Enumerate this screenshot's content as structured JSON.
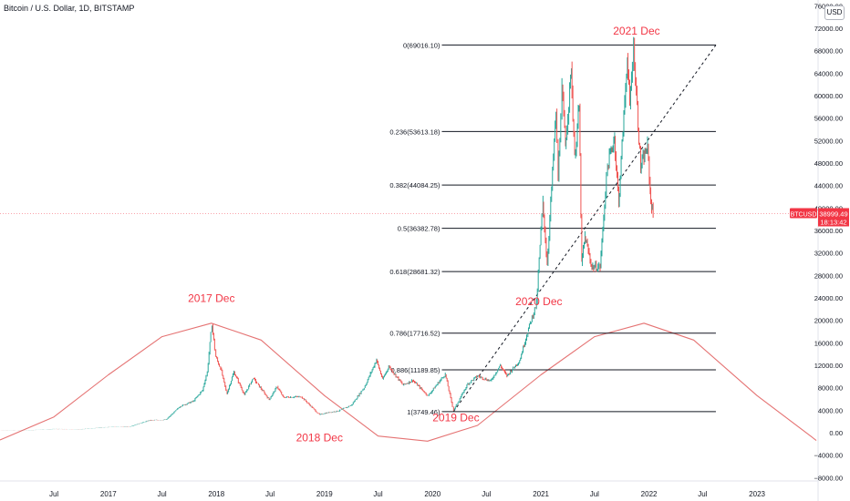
{
  "header": {
    "title": "Bitcoin / U.S. Dollar, 1D, BITSTAMP",
    "currency_button": "USD"
  },
  "price_label": {
    "symbol": "BTCUSD",
    "price": "38999.49",
    "countdown": "18:13:42",
    "value": 38999.49,
    "color": "#f23645"
  },
  "colors": {
    "up": "#26a69a",
    "down": "#ef5350",
    "cycle": "#e57373",
    "annotation": "#f23645",
    "fib": "#131722",
    "axis_text": "#131722"
  },
  "chart_data": {
    "type": "line",
    "title": "Bitcoin / U.S. Dollar, 1D, BITSTAMP",
    "xlabel": "",
    "ylabel": "",
    "x_range": [
      "2016-01-01",
      "2023-07-20"
    ],
    "ylim": [
      -9000,
      76000
    ],
    "y_ticks": [
      -8000,
      -4000,
      0,
      4000,
      8000,
      12000,
      16000,
      20000,
      24000,
      28000,
      32000,
      36000,
      40000,
      44000,
      48000,
      52000,
      56000,
      60000,
      64000,
      68000,
      72000
    ],
    "y_tick_labels": [
      "−8000.00",
      "−4000.00",
      "0.00",
      "4000.00",
      "8000.00",
      "12000.00",
      "16000.00",
      "20000.00",
      "24000.00",
      "28000.00",
      "32000.00",
      "36000.00",
      "40000.00",
      "44000.00",
      "48000.00",
      "52000.00",
      "56000.00",
      "60000.00",
      "64000.00",
      "68000.00",
      "72000.00"
    ],
    "top_tick_label": "76000.00",
    "x_ticks": [
      {
        "date": "2016-07-01",
        "label": "Jul"
      },
      {
        "date": "2017-01-01",
        "label": "2017"
      },
      {
        "date": "2017-07-01",
        "label": "Jul"
      },
      {
        "date": "2018-01-01",
        "label": "2018"
      },
      {
        "date": "2018-07-01",
        "label": "Jul"
      },
      {
        "date": "2019-01-01",
        "label": "2019"
      },
      {
        "date": "2019-07-01",
        "label": "Jul"
      },
      {
        "date": "2020-01-01",
        "label": "2020"
      },
      {
        "date": "2020-07-01",
        "label": "Jul"
      },
      {
        "date": "2021-01-01",
        "label": "2021"
      },
      {
        "date": "2021-07-01",
        "label": "Jul"
      },
      {
        "date": "2022-01-01",
        "label": "2022"
      },
      {
        "date": "2022-07-01",
        "label": "Jul"
      },
      {
        "date": "2023-01-01",
        "label": "2023"
      }
    ],
    "price_series": [
      [
        "2016-01-01",
        430
      ],
      [
        "2016-04-01",
        420
      ],
      [
        "2016-07-01",
        650
      ],
      [
        "2016-10-01",
        610
      ],
      [
        "2017-01-01",
        1000
      ],
      [
        "2017-03-15",
        1100
      ],
      [
        "2017-05-20",
        2200
      ],
      [
        "2017-07-15",
        2300
      ],
      [
        "2017-09-01",
        4700
      ],
      [
        "2017-10-15",
        5600
      ],
      [
        "2017-11-15",
        7500
      ],
      [
        "2017-12-01",
        10800
      ],
      [
        "2017-12-17",
        19200
      ],
      [
        "2017-12-30",
        13500
      ],
      [
        "2018-01-15",
        11500
      ],
      [
        "2018-02-06",
        6900
      ],
      [
        "2018-03-01",
        10800
      ],
      [
        "2018-04-06",
        6700
      ],
      [
        "2018-05-05",
        9700
      ],
      [
        "2018-06-28",
        5900
      ],
      [
        "2018-07-25",
        8200
      ],
      [
        "2018-08-15",
        6300
      ],
      [
        "2018-10-15",
        6400
      ],
      [
        "2018-11-20",
        4500
      ],
      [
        "2018-12-15",
        3200
      ],
      [
        "2019-01-15",
        3600
      ],
      [
        "2019-02-20",
        3900
      ],
      [
        "2019-04-02",
        4900
      ],
      [
        "2019-05-15",
        8000
      ],
      [
        "2019-06-26",
        13000
      ],
      [
        "2019-07-16",
        9500
      ],
      [
        "2019-08-06",
        11800
      ],
      [
        "2019-09-24",
        8500
      ],
      [
        "2019-10-26",
        9300
      ],
      [
        "2019-12-17",
        6600
      ],
      [
        "2020-02-13",
        10400
      ],
      [
        "2020-03-12",
        4000
      ],
      [
        "2020-04-29",
        8700
      ],
      [
        "2020-06-01",
        10100
      ],
      [
        "2020-07-15",
        9200
      ],
      [
        "2020-08-17",
        12000
      ],
      [
        "2020-09-08",
        10100
      ],
      [
        "2020-10-21",
        12800
      ],
      [
        "2020-11-18",
        18000
      ],
      [
        "2020-12-17",
        23000
      ],
      [
        "2021-01-08",
        41000
      ],
      [
        "2021-01-22",
        30000
      ],
      [
        "2021-02-21",
        57000
      ],
      [
        "2021-02-28",
        45000
      ],
      [
        "2021-03-13",
        61000
      ],
      [
        "2021-03-25",
        51000
      ],
      [
        "2021-04-14",
        64800
      ],
      [
        "2021-04-25",
        49000
      ],
      [
        "2021-05-10",
        58000
      ],
      [
        "2021-05-19",
        30000
      ],
      [
        "2021-05-30",
        35000
      ],
      [
        "2021-06-22",
        29500
      ],
      [
        "2021-07-20",
        29500
      ],
      [
        "2021-08-14",
        47500
      ],
      [
        "2021-09-07",
        52700
      ],
      [
        "2021-09-21",
        40600
      ],
      [
        "2021-10-20",
        66900
      ],
      [
        "2021-10-28",
        58000
      ],
      [
        "2021-11-10",
        69000
      ],
      [
        "2021-12-04",
        47000
      ],
      [
        "2021-12-27",
        51000
      ],
      [
        "2022-01-05",
        43000
      ],
      [
        "2022-01-10",
        40000
      ],
      [
        "2022-01-15",
        38999.49
      ]
    ],
    "cycle_curve": {
      "name": "",
      "color": "#e57373",
      "points": [
        [
          "2016-01-01",
          -1300
        ],
        [
          "2016-07-01",
          2800
        ],
        [
          "2017-01-01",
          10300
        ],
        [
          "2017-07-01",
          17100
        ],
        [
          "2017-12-15",
          19500
        ],
        [
          "2018-06-01",
          16500
        ],
        [
          "2019-01-01",
          6600
        ],
        [
          "2019-07-01",
          -600
        ],
        [
          "2019-12-15",
          -1500
        ],
        [
          "2020-06-01",
          1300
        ],
        [
          "2021-01-01",
          10300
        ],
        [
          "2021-07-01",
          17100
        ],
        [
          "2021-12-15",
          19500
        ],
        [
          "2022-06-01",
          16500
        ],
        [
          "2023-01-01",
          6600
        ],
        [
          "2023-07-01",
          -600
        ],
        [
          "2023-07-20",
          -1400
        ]
      ]
    },
    "trend_line": {
      "style": "dashed",
      "start": [
        "2020-03-12",
        3749.46
      ],
      "end": [
        "2022-08-15",
        69016.1
      ]
    },
    "fib_levels": [
      {
        "ratio": 0,
        "price": 69016.1,
        "label": "0(69016.10)"
      },
      {
        "ratio": 0.236,
        "price": 53613.18,
        "label": "0.236(53613.18)"
      },
      {
        "ratio": 0.382,
        "price": 44084.25,
        "label": "0.382(44084.25)"
      },
      {
        "ratio": 0.5,
        "price": 36382.78,
        "label": "0.5(36382.78)"
      },
      {
        "ratio": 0.618,
        "price": 28681.32,
        "label": "0.618(28681.32)"
      },
      {
        "ratio": 0.786,
        "price": 17716.52,
        "label": "0.786(17716.52)"
      },
      {
        "ratio": 0.886,
        "price": 11189.85,
        "label": "0.886(11189.85)"
      },
      {
        "ratio": 1,
        "price": 3749.46,
        "label": "1(3749.46)"
      }
    ],
    "fib_range": [
      "2019-11-01",
      "2022-08-15"
    ],
    "annotations": [
      {
        "text": "2017 Dec",
        "date": "2017-12-15",
        "y": 23300
      },
      {
        "text": "2018 Dec",
        "date": "2018-12-15",
        "y": -1500
      },
      {
        "text": "2019 Dec",
        "date": "2020-03-20",
        "y": 2000
      },
      {
        "text": "2020 Dec",
        "date": "2020-12-25",
        "y": 22700
      },
      {
        "text": "2021 Dec",
        "date": "2021-11-20",
        "y": 70900
      }
    ],
    "grid": false,
    "legend": "none"
  }
}
